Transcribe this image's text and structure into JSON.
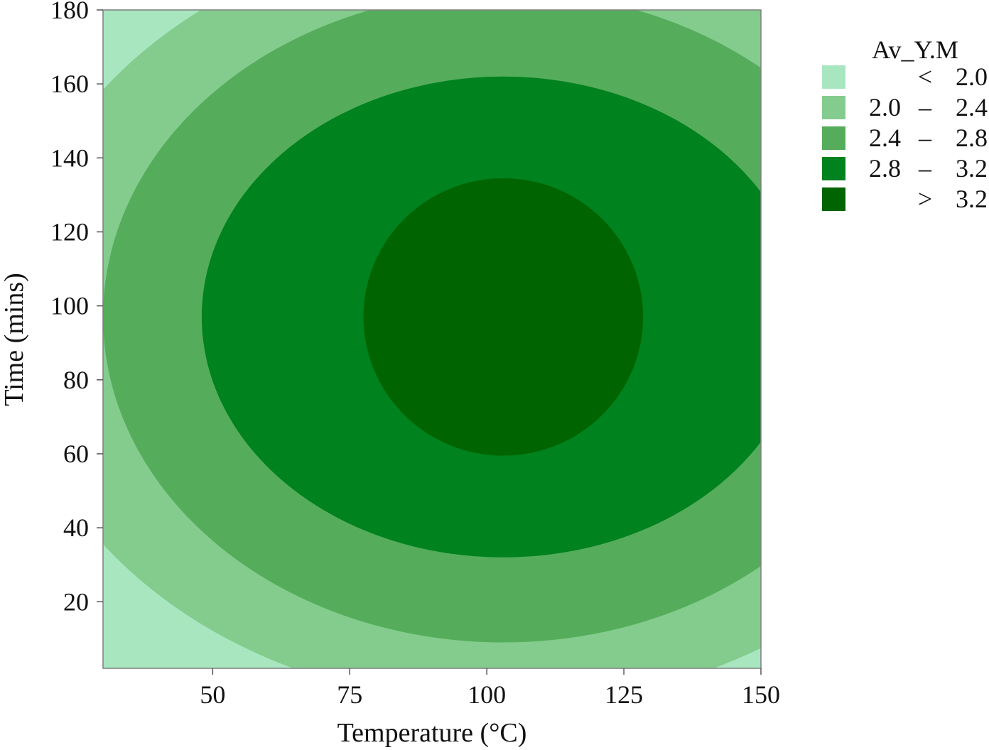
{
  "chart_data": {
    "type": "contour",
    "xlabel": "Temperature (°C)",
    "ylabel": "Time (mins)",
    "xlim": [
      30,
      150
    ],
    "ylim": [
      2,
      180
    ],
    "x_ticks": [
      50,
      75,
      100,
      125,
      150
    ],
    "y_ticks": [
      20,
      40,
      60,
      80,
      100,
      120,
      140,
      160,
      180
    ],
    "center": {
      "x": 103,
      "y": 97
    },
    "grid": false,
    "legend": {
      "title": "Av_Y.M",
      "placement": "top-right",
      "entries": [
        {
          "low": "",
          "op": "<",
          "high": "2.0",
          "color": "#a8e6c0"
        },
        {
          "low": "2.0",
          "op": "–",
          "high": "2.4",
          "color": "#84cc8e"
        },
        {
          "low": "2.4",
          "op": "–",
          "high": "2.8",
          "color": "#55ad5c"
        },
        {
          "low": "2.8",
          "op": "–",
          "high": "3.2",
          "color": "#00821e"
        },
        {
          "low": "",
          "op": ">",
          "high": "3.2",
          "color": "#006400"
        }
      ]
    },
    "contour_levels": [
      {
        "level": "2.0",
        "radius_x": 90,
        "radius_y": 105
      },
      {
        "level": "2.4",
        "radius_x": 73,
        "radius_y": 88
      },
      {
        "level": "2.8",
        "radius_x": 55,
        "radius_y": 65
      },
      {
        "level": "3.2",
        "radius_x": 25.5,
        "radius_y": 37.5
      }
    ]
  }
}
